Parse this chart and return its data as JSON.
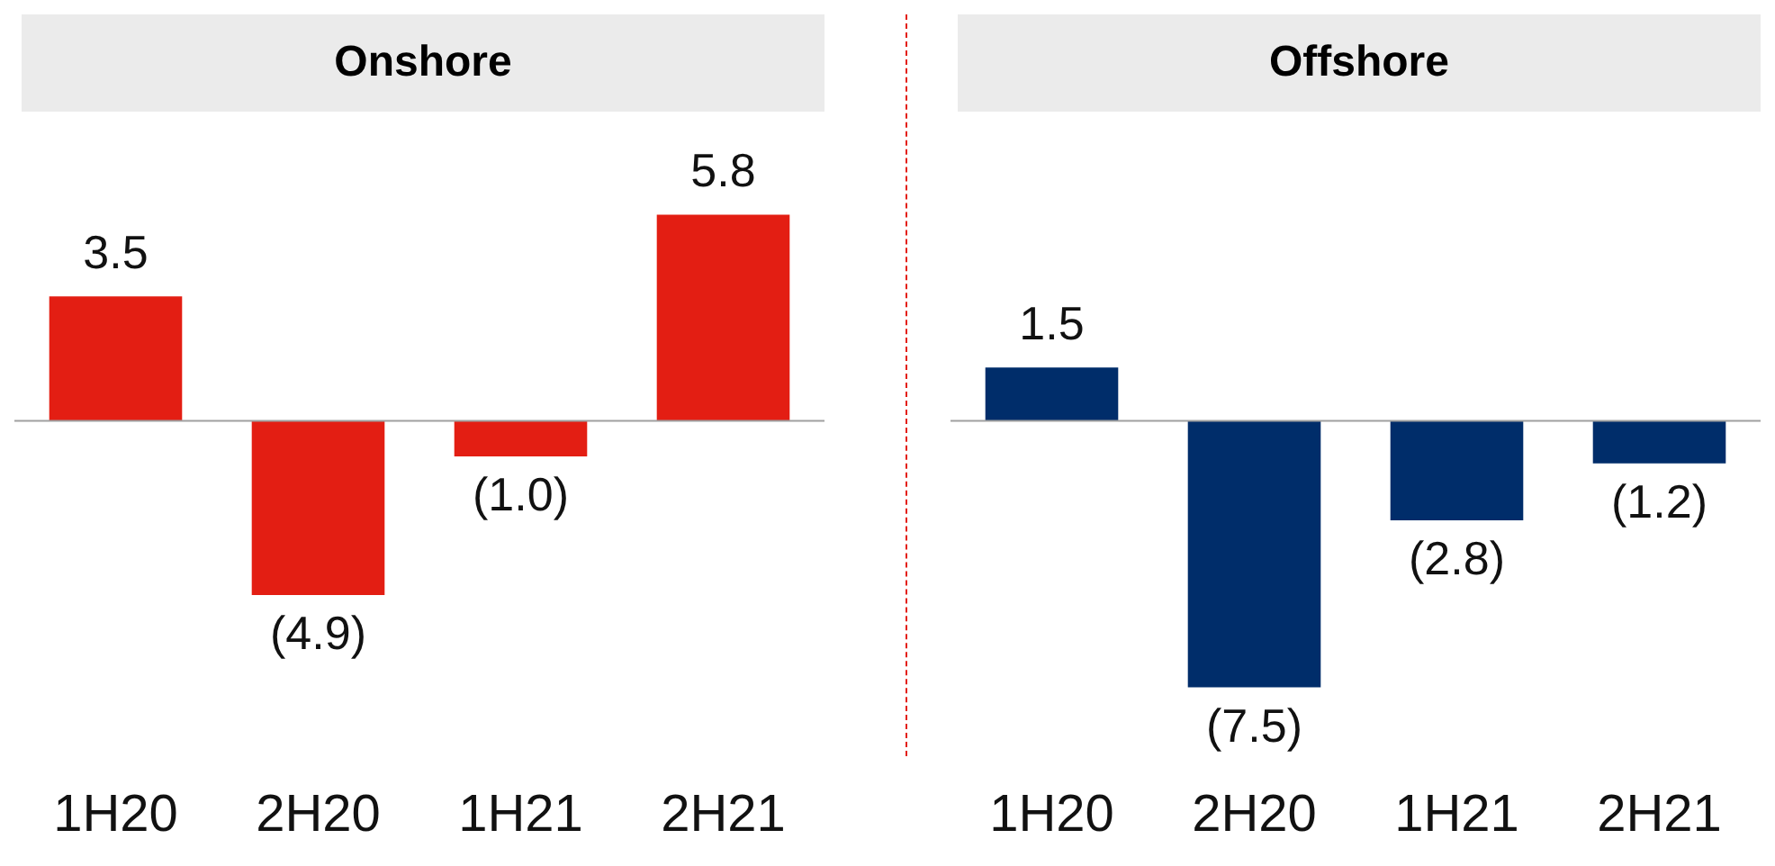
{
  "chart_data": [
    {
      "type": "bar",
      "title": "Onshore",
      "categories": [
        "1H20",
        "2H20",
        "1H21",
        "2H21"
      ],
      "values": [
        3.5,
        -4.9,
        -1.0,
        5.8
      ],
      "color": "#e31e13",
      "value_labels": [
        "3.5",
        "(4.9)",
        "(1.0)",
        "5.8"
      ]
    },
    {
      "type": "bar",
      "title": "Offshore",
      "categories": [
        "1H20",
        "2H20",
        "1H21",
        "2H21"
      ],
      "values": [
        1.5,
        -7.5,
        -2.8,
        -1.2
      ],
      "color": "#002d6a",
      "value_labels": [
        "1.5",
        "(7.5)",
        "(2.8)",
        "(1.2)"
      ]
    }
  ]
}
